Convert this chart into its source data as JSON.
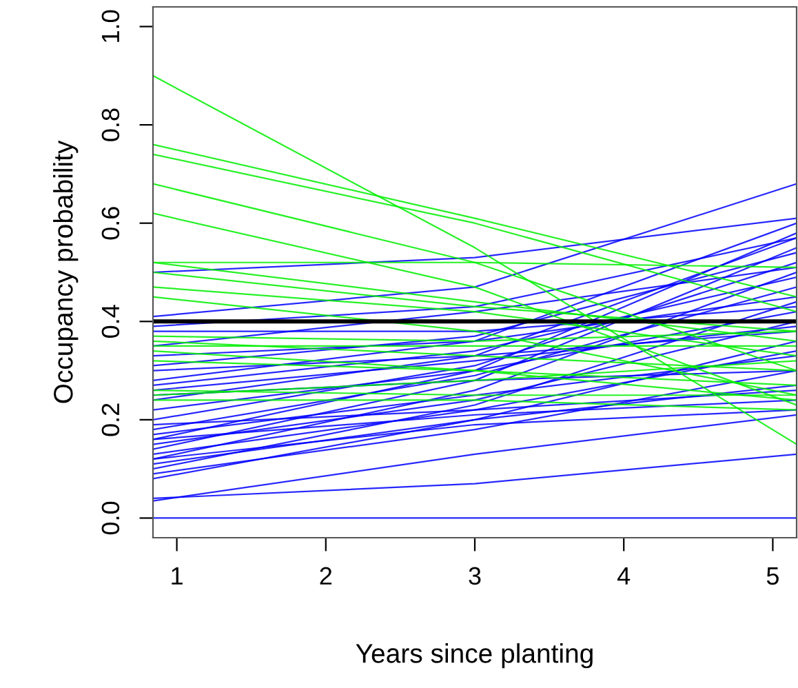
{
  "chart_data": {
    "type": "line",
    "xlabel": "Years since planting",
    "ylabel": "Occupancy probability",
    "x": [
      0.84,
      3,
      5.16
    ],
    "xlim": [
      0.84,
      5.16
    ],
    "ylim": [
      -0.04,
      1.04
    ],
    "xticks": [
      1,
      2,
      3,
      4,
      5
    ],
    "yticks": [
      {
        "value": 0,
        "label": "0.0"
      },
      {
        "value": 0.2,
        "label": "0.2"
      },
      {
        "value": 0.4,
        "label": "0.4"
      },
      {
        "value": 0.6,
        "label": "0.6"
      },
      {
        "value": 0.8,
        "label": "0.8"
      },
      {
        "value": 1,
        "label": "1.0"
      }
    ],
    "grid": false,
    "marker": "none",
    "line_style": "solid",
    "ref_lines": [
      {
        "axis": "y",
        "value": 0.4,
        "color": "#000000"
      }
    ],
    "series": [
      {
        "color": "#0000ff",
        "values": [
          0.5,
          0.53,
          0.61
        ]
      },
      {
        "color": "#0000ff",
        "values": [
          0.41,
          0.47,
          0.68
        ]
      },
      {
        "color": "#0000ff",
        "values": [
          0.0,
          0.0,
          0.0
        ]
      },
      {
        "color": "#0000ff",
        "values": [
          0.04,
          0.07,
          0.13
        ]
      },
      {
        "color": "#0000ff",
        "values": [
          0.035,
          0.13,
          0.21
        ]
      },
      {
        "color": "#0000ff",
        "values": [
          0.08,
          0.2,
          0.36
        ]
      },
      {
        "color": "#0000ff",
        "values": [
          0.09,
          0.18,
          0.3
        ]
      },
      {
        "color": "#0000ff",
        "values": [
          0.1,
          0.23,
          0.44
        ]
      },
      {
        "color": "#0000ff",
        "values": [
          0.11,
          0.2,
          0.27
        ]
      },
      {
        "color": "#0000ff",
        "values": [
          0.12,
          0.26,
          0.5
        ]
      },
      {
        "color": "#0000ff",
        "values": [
          0.13,
          0.22,
          0.34
        ]
      },
      {
        "color": "#0000ff",
        "values": [
          0.14,
          0.28,
          0.55
        ]
      },
      {
        "color": "#0000ff",
        "values": [
          0.15,
          0.24,
          0.4
        ]
      },
      {
        "color": "#0000ff",
        "values": [
          0.16,
          0.3,
          0.58
        ]
      },
      {
        "color": "#0000ff",
        "values": [
          0.17,
          0.25,
          0.33
        ]
      },
      {
        "color": "#0000ff",
        "values": [
          0.18,
          0.29,
          0.47
        ]
      },
      {
        "color": "#0000ff",
        "values": [
          0.19,
          0.22,
          0.26
        ]
      },
      {
        "color": "#0000ff",
        "values": [
          0.2,
          0.31,
          0.52
        ]
      },
      {
        "color": "#0000ff",
        "values": [
          0.22,
          0.3,
          0.42
        ]
      },
      {
        "color": "#0000ff",
        "values": [
          0.24,
          0.33,
          0.57
        ]
      },
      {
        "color": "#0000ff",
        "values": [
          0.25,
          0.28,
          0.3
        ]
      },
      {
        "color": "#0000ff",
        "values": [
          0.27,
          0.34,
          0.49
        ]
      },
      {
        "color": "#0000ff",
        "values": [
          0.28,
          0.36,
          0.6
        ]
      },
      {
        "color": "#0000ff",
        "values": [
          0.3,
          0.33,
          0.38
        ]
      },
      {
        "color": "#0000ff",
        "values": [
          0.31,
          0.37,
          0.54
        ]
      },
      {
        "color": "#0000ff",
        "values": [
          0.33,
          0.36,
          0.45
        ]
      },
      {
        "color": "#0000ff",
        "values": [
          0.35,
          0.42,
          0.51
        ]
      },
      {
        "color": "#0000ff",
        "values": [
          0.38,
          0.38,
          0.43
        ]
      },
      {
        "color": "#0000ff",
        "values": [
          0.39,
          0.43,
          0.57
        ]
      },
      {
        "color": "#0000ff",
        "values": [
          0.26,
          0.32,
          0.39
        ]
      },
      {
        "color": "#0000ff",
        "values": [
          0.16,
          0.21,
          0.24
        ]
      },
      {
        "color": "#0000ff",
        "values": [
          0.12,
          0.19,
          0.22
        ]
      },
      {
        "color": "#00ee00",
        "values": [
          0.9,
          0.55,
          0.15
        ]
      },
      {
        "color": "#00ee00",
        "values": [
          0.76,
          0.61,
          0.45
        ]
      },
      {
        "color": "#00ee00",
        "values": [
          0.74,
          0.6,
          0.42
        ]
      },
      {
        "color": "#00ee00",
        "values": [
          0.68,
          0.52,
          0.3
        ]
      },
      {
        "color": "#00ee00",
        "values": [
          0.62,
          0.47,
          0.23
        ]
      },
      {
        "color": "#00ee00",
        "values": [
          0.52,
          0.52,
          0.51
        ]
      },
      {
        "color": "#00ee00",
        "values": [
          0.52,
          0.44,
          0.36
        ]
      },
      {
        "color": "#00ee00",
        "values": [
          0.5,
          0.43,
          0.38
        ]
      },
      {
        "color": "#00ee00",
        "values": [
          0.47,
          0.42,
          0.33
        ]
      },
      {
        "color": "#00ee00",
        "values": [
          0.45,
          0.38,
          0.25
        ]
      },
      {
        "color": "#00ee00",
        "values": [
          0.37,
          0.36,
          0.38
        ]
      },
      {
        "color": "#00ee00",
        "values": [
          0.36,
          0.33,
          0.3
        ]
      },
      {
        "color": "#00ee00",
        "values": [
          0.35,
          0.35,
          0.35
        ]
      },
      {
        "color": "#00ee00",
        "values": [
          0.34,
          0.3,
          0.24
        ]
      },
      {
        "color": "#00ee00",
        "values": [
          0.32,
          0.3,
          0.27
        ]
      },
      {
        "color": "#00ee00",
        "values": [
          0.26,
          0.25,
          0.25
        ]
      },
      {
        "color": "#00ee00",
        "values": [
          0.25,
          0.28,
          0.32
        ]
      },
      {
        "color": "#00ee00",
        "values": [
          0.24,
          0.24,
          0.22
        ]
      }
    ]
  }
}
